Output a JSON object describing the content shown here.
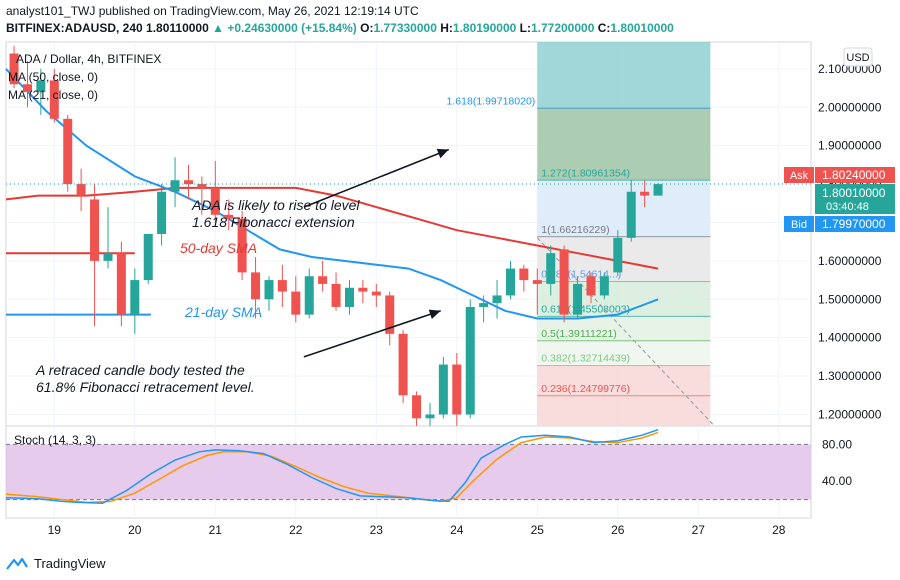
{
  "header": {
    "published_line": "analyst101_TWJ published on TradingView.com, May 26, 2021 12:19:14 UTC",
    "symbol": "BITFINEX:ADAUSD, 240",
    "last": "1.80110000",
    "change": "▲ +0.24630000 (+15.84%)",
    "o_label": "O:",
    "o_value": "1.77330000",
    "h_label": "H:",
    "h_value": "1.80190000",
    "l_label": "L:",
    "l_value": "1.77200000",
    "c_label": "C:",
    "c_value": "1.80010000"
  },
  "legend": {
    "title": "ADA / Dollar, 4h, BITFINEX",
    "ma50": "MA (50, close, 0)",
    "ma21": "MA (21, close, 0)"
  },
  "currency": "USD",
  "ask": {
    "label": "Ask",
    "value": "1.80240000"
  },
  "current": {
    "value": "1.80010000",
    "timer": "03:40:48"
  },
  "bid": {
    "label": "Bid",
    "value": "1.79970000"
  },
  "annotations": {
    "rise_line1": "ADA is likely to rise to level",
    "rise_line2": "1.618 Fibonacci extension",
    "sma50": "50-day SMA",
    "sma21": "21-day SMA",
    "retrace_line1": "A retraced candle body tested the",
    "retrace_line2": "61.8% Fibonacci retracement level."
  },
  "stoch": {
    "label": "Stoch (14, 3, 3)",
    "ticks": [
      "80.00",
      "40.00"
    ]
  },
  "footer": {
    "brand": "TradingView"
  },
  "colors": {
    "up": "#26a69a",
    "down": "#ef5350",
    "ma21": "#2196f3",
    "ma50": "#e53935",
    "stoch_k": "#2196f3",
    "stoch_d": "#ff9800",
    "stoch_band": "#e1bee7"
  },
  "chart_data": {
    "type": "candlestick",
    "y_axis": {
      "ticks": [
        "2.10000000",
        "2.00000000",
        "1.90000000",
        "1.80000000",
        "1.70000000",
        "1.60000000",
        "1.50000000",
        "1.40000000",
        "1.30000000",
        "1.20000000"
      ],
      "ylim": [
        1.17,
        2.17
      ]
    },
    "x_axis": {
      "ticks": [
        "19",
        "20",
        "21",
        "22",
        "23",
        "24",
        "25",
        "26",
        "27",
        "28"
      ],
      "xlim": [
        18.4,
        28.4
      ]
    },
    "candles": [
      {
        "t": 18.5,
        "o": 2.14,
        "h": 2.16,
        "l": 2.05,
        "c": 2.06
      },
      {
        "t": 18.667,
        "o": 2.06,
        "h": 2.12,
        "l": 2.0,
        "c": 2.04
      },
      {
        "t": 18.833,
        "o": 2.04,
        "h": 2.1,
        "l": 1.98,
        "c": 2.07
      },
      {
        "t": 19.0,
        "o": 2.07,
        "h": 2.1,
        "l": 1.96,
        "c": 1.97
      },
      {
        "t": 19.167,
        "o": 1.97,
        "h": 1.98,
        "l": 1.78,
        "c": 1.8
      },
      {
        "t": 19.333,
        "o": 1.8,
        "h": 1.84,
        "l": 1.73,
        "c": 1.77
      },
      {
        "t": 19.5,
        "o": 1.76,
        "h": 1.8,
        "l": 1.43,
        "c": 1.6
      },
      {
        "t": 19.667,
        "o": 1.6,
        "h": 1.74,
        "l": 1.58,
        "c": 1.62
      },
      {
        "t": 19.833,
        "o": 1.62,
        "h": 1.65,
        "l": 1.43,
        "c": 1.46
      },
      {
        "t": 20.0,
        "o": 1.46,
        "h": 1.58,
        "l": 1.41,
        "c": 1.55
      },
      {
        "t": 20.167,
        "o": 1.55,
        "h": 1.67,
        "l": 1.54,
        "c": 1.67
      },
      {
        "t": 20.333,
        "o": 1.67,
        "h": 1.8,
        "l": 1.64,
        "c": 1.78
      },
      {
        "t": 20.5,
        "o": 1.78,
        "h": 1.87,
        "l": 1.74,
        "c": 1.81
      },
      {
        "t": 20.667,
        "o": 1.81,
        "h": 1.85,
        "l": 1.76,
        "c": 1.8
      },
      {
        "t": 20.833,
        "o": 1.8,
        "h": 1.82,
        "l": 1.72,
        "c": 1.79
      },
      {
        "t": 21.0,
        "o": 1.79,
        "h": 1.86,
        "l": 1.7,
        "c": 1.72
      },
      {
        "t": 21.167,
        "o": 1.72,
        "h": 1.76,
        "l": 1.68,
        "c": 1.71
      },
      {
        "t": 21.333,
        "o": 1.71,
        "h": 1.73,
        "l": 1.55,
        "c": 1.57
      },
      {
        "t": 21.5,
        "o": 1.57,
        "h": 1.61,
        "l": 1.45,
        "c": 1.5
      },
      {
        "t": 21.667,
        "o": 1.5,
        "h": 1.56,
        "l": 1.47,
        "c": 1.55
      },
      {
        "t": 21.833,
        "o": 1.55,
        "h": 1.59,
        "l": 1.48,
        "c": 1.52
      },
      {
        "t": 22.0,
        "o": 1.52,
        "h": 1.56,
        "l": 1.44,
        "c": 1.46
      },
      {
        "t": 22.167,
        "o": 1.46,
        "h": 1.58,
        "l": 1.45,
        "c": 1.56
      },
      {
        "t": 22.333,
        "o": 1.56,
        "h": 1.6,
        "l": 1.52,
        "c": 1.54
      },
      {
        "t": 22.5,
        "o": 1.54,
        "h": 1.57,
        "l": 1.47,
        "c": 1.48
      },
      {
        "t": 22.667,
        "o": 1.48,
        "h": 1.55,
        "l": 1.46,
        "c": 1.53
      },
      {
        "t": 22.833,
        "o": 1.53,
        "h": 1.55,
        "l": 1.49,
        "c": 1.52
      },
      {
        "t": 23.0,
        "o": 1.52,
        "h": 1.54,
        "l": 1.48,
        "c": 1.51
      },
      {
        "t": 23.167,
        "o": 1.51,
        "h": 1.52,
        "l": 1.38,
        "c": 1.41
      },
      {
        "t": 23.333,
        "o": 1.41,
        "h": 1.42,
        "l": 1.23,
        "c": 1.25
      },
      {
        "t": 23.5,
        "o": 1.25,
        "h": 1.26,
        "l": 1.17,
        "c": 1.19
      },
      {
        "t": 23.667,
        "o": 1.19,
        "h": 1.23,
        "l": 1.17,
        "c": 1.2
      },
      {
        "t": 23.833,
        "o": 1.2,
        "h": 1.35,
        "l": 1.19,
        "c": 1.33
      },
      {
        "t": 24.0,
        "o": 1.33,
        "h": 1.36,
        "l": 1.17,
        "c": 1.2
      },
      {
        "t": 24.167,
        "o": 1.2,
        "h": 1.5,
        "l": 1.19,
        "c": 1.48
      },
      {
        "t": 24.333,
        "o": 1.48,
        "h": 1.51,
        "l": 1.44,
        "c": 1.49
      },
      {
        "t": 24.5,
        "o": 1.49,
        "h": 1.55,
        "l": 1.45,
        "c": 1.51
      },
      {
        "t": 24.667,
        "o": 1.51,
        "h": 1.6,
        "l": 1.5,
        "c": 1.58
      },
      {
        "t": 24.833,
        "o": 1.58,
        "h": 1.59,
        "l": 1.52,
        "c": 1.55
      },
      {
        "t": 25.0,
        "o": 1.55,
        "h": 1.58,
        "l": 1.46,
        "c": 1.54
      },
      {
        "t": 25.167,
        "o": 1.54,
        "h": 1.64,
        "l": 1.51,
        "c": 1.62
      },
      {
        "t": 25.333,
        "o": 1.63,
        "h": 1.64,
        "l": 1.44,
        "c": 1.46
      },
      {
        "t": 25.5,
        "o": 1.46,
        "h": 1.56,
        "l": 1.45,
        "c": 1.54
      },
      {
        "t": 25.667,
        "o": 1.56,
        "h": 1.57,
        "l": 1.49,
        "c": 1.51
      },
      {
        "t": 25.833,
        "o": 1.51,
        "h": 1.57,
        "l": 1.5,
        "c": 1.56
      },
      {
        "t": 26.0,
        "o": 1.57,
        "h": 1.68,
        "l": 1.56,
        "c": 1.66
      },
      {
        "t": 26.167,
        "o": 1.66,
        "h": 1.81,
        "l": 1.65,
        "c": 1.78
      },
      {
        "t": 26.333,
        "o": 1.78,
        "h": 1.81,
        "l": 1.74,
        "c": 1.77
      },
      {
        "t": 26.5,
        "o": 1.77,
        "h": 1.802,
        "l": 1.772,
        "c": 1.8
      }
    ],
    "ma21": [
      [
        18.4,
        2.1
      ],
      [
        18.9,
        1.99
      ],
      [
        19.4,
        1.9
      ],
      [
        20.0,
        1.82
      ],
      [
        20.5,
        1.78
      ],
      [
        21.0,
        1.73
      ],
      [
        21.4,
        1.68
      ],
      [
        21.8,
        1.63
      ],
      [
        22.2,
        1.61
      ],
      [
        22.6,
        1.6
      ],
      [
        23.0,
        1.59
      ],
      [
        23.4,
        1.58
      ],
      [
        23.8,
        1.55
      ],
      [
        24.2,
        1.51
      ],
      [
        24.6,
        1.47
      ],
      [
        25.0,
        1.45
      ],
      [
        25.5,
        1.45
      ],
      [
        26.0,
        1.46
      ],
      [
        26.25,
        1.48
      ],
      [
        26.5,
        1.5
      ]
    ],
    "ma50": [
      [
        18.4,
        1.76
      ],
      [
        18.8,
        1.77
      ],
      [
        19.4,
        1.77
      ],
      [
        20.0,
        1.78
      ],
      [
        20.5,
        1.79
      ],
      [
        21.0,
        1.79
      ],
      [
        21.5,
        1.79
      ],
      [
        22.0,
        1.79
      ],
      [
        22.5,
        1.77
      ],
      [
        23.0,
        1.74
      ],
      [
        23.5,
        1.71
      ],
      [
        24.0,
        1.68
      ],
      [
        24.5,
        1.66
      ],
      [
        25.0,
        1.64
      ],
      [
        25.5,
        1.62
      ],
      [
        26.0,
        1.6
      ],
      [
        26.5,
        1.58
      ]
    ],
    "sma_label_lines": [
      {
        "x1": 18.4,
        "x2": 20.0,
        "y": 1.62
      },
      {
        "x1": 18.4,
        "x2": 20.2,
        "y": 1.46
      }
    ],
    "fib_zone": {
      "x1": 25.0,
      "x2": 27.15
    },
    "fib_levels": [
      {
        "ratio": "1.618",
        "price": 1.99718,
        "label": "1.618(1.99718020)",
        "color": "#2196f3",
        "fill": "#8fd0d2"
      },
      {
        "ratio": "1.272",
        "price": 1.80961,
        "label": "1.272(1.80961354)",
        "color": "#26a69a",
        "fill": "#9fc4a6"
      },
      {
        "ratio": "1",
        "price": 1.66216,
        "label": "1(1.66216229)",
        "color": "#787b86",
        "fill": "#d9eafa"
      },
      {
        "ratio": "0.786",
        "price": 1.54614,
        "label": "0.786(1.54614...)",
        "color": "#5b9cf6",
        "fill": "#e6e6e6"
      },
      {
        "ratio": "0.618",
        "price": 1.45508,
        "label": "0.618(1.45508003)",
        "color": "#26a69a",
        "fill": "#d6ecdc"
      },
      {
        "ratio": "0.5",
        "price": 1.39111,
        "label": "0.5(1.39111221)",
        "color": "#4caf50",
        "fill": "#e3f1e3"
      },
      {
        "ratio": "0.382",
        "price": 1.32714,
        "label": "0.382(1.32714439)",
        "color": "#81c784",
        "fill": "#edf6ed"
      },
      {
        "ratio": "0.236",
        "price": 1.248,
        "label": "0.236(1.24799776)",
        "color": "#ef5350",
        "fill": "#f8d7d7"
      },
      {
        "ratio": "0",
        "price": 1.17,
        "label": "",
        "color": "#ef5350",
        "fill": "#f8d7d7"
      }
    ],
    "fib_top": 2.17,
    "trend_dashes": [
      [
        25.0,
        1.66
      ],
      [
        27.2,
        1.17
      ]
    ],
    "arrows": [
      {
        "from": [
          22.1,
          1.74
        ],
        "to": [
          23.9,
          1.89
        ]
      },
      {
        "from": [
          22.1,
          1.35
        ],
        "to": [
          23.8,
          1.47
        ]
      }
    ],
    "stoch_k": [
      [
        18.4,
        22
      ],
      [
        18.8,
        21
      ],
      [
        19.1,
        18
      ],
      [
        19.3,
        17
      ],
      [
        19.6,
        16
      ],
      [
        19.9,
        30
      ],
      [
        20.2,
        48
      ],
      [
        20.5,
        63
      ],
      [
        20.8,
        72
      ],
      [
        21.0,
        74
      ],
      [
        21.3,
        73
      ],
      [
        21.6,
        70
      ],
      [
        21.9,
        58
      ],
      [
        22.2,
        44
      ],
      [
        22.5,
        32
      ],
      [
        22.8,
        24
      ],
      [
        23.1,
        23
      ],
      [
        23.4,
        22
      ],
      [
        23.7,
        19
      ],
      [
        23.9,
        18
      ],
      [
        24.1,
        38
      ],
      [
        24.3,
        65
      ],
      [
        24.6,
        80
      ],
      [
        24.8,
        88
      ],
      [
        25.1,
        90
      ],
      [
        25.4,
        88
      ],
      [
        25.7,
        82
      ],
      [
        26.0,
        84
      ],
      [
        26.3,
        90
      ],
      [
        26.5,
        96
      ]
    ],
    "stoch_d": [
      [
        18.4,
        26
      ],
      [
        18.8,
        23
      ],
      [
        19.1,
        20
      ],
      [
        19.4,
        17
      ],
      [
        19.7,
        18
      ],
      [
        20.0,
        27
      ],
      [
        20.3,
        42
      ],
      [
        20.6,
        57
      ],
      [
        20.9,
        68
      ],
      [
        21.1,
        72
      ],
      [
        21.4,
        72
      ],
      [
        21.7,
        67
      ],
      [
        22.0,
        56
      ],
      [
        22.3,
        44
      ],
      [
        22.6,
        34
      ],
      [
        22.9,
        27
      ],
      [
        23.2,
        24
      ],
      [
        23.5,
        21
      ],
      [
        23.8,
        18
      ],
      [
        24.0,
        22
      ],
      [
        24.2,
        40
      ],
      [
        24.5,
        64
      ],
      [
        24.8,
        82
      ],
      [
        25.1,
        88
      ],
      [
        25.4,
        87
      ],
      [
        25.7,
        83
      ],
      [
        26.0,
        82
      ],
      [
        26.3,
        87
      ],
      [
        26.5,
        93
      ]
    ],
    "stoch_ylim": [
      0,
      100
    ],
    "stoch_band": [
      20,
      80
    ]
  }
}
